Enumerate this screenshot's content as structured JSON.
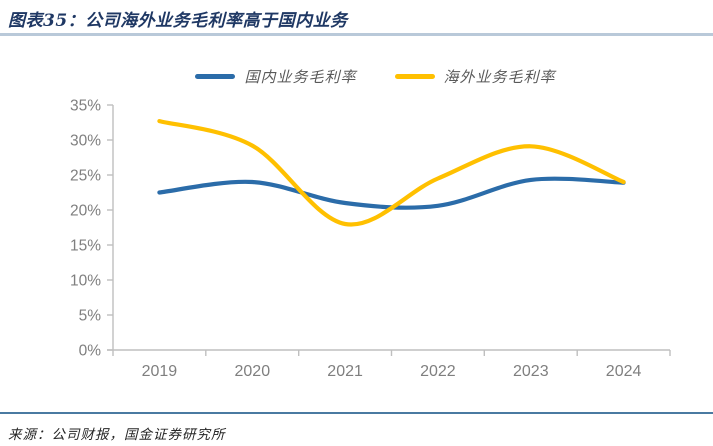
{
  "header": {
    "title": "图表35：公司海外业务毛利率高于国内业务"
  },
  "footer": {
    "source": "来源：公司财报，国金证券研究所"
  },
  "colors": {
    "title": "#1F3864",
    "divider_top": "#B9C9D9",
    "divider_bottom": "#4A7AA1",
    "axis": "#BFBFBF",
    "tick_label": "#7F7F7F",
    "legend_text": "#595959",
    "series_domestic": "#2B6CA9",
    "series_overseas": "#FFC000"
  },
  "chart_data": {
    "type": "line",
    "title": "图表35：公司海外业务毛利率高于国内业务",
    "categories": [
      "2019",
      "2020",
      "2021",
      "2022",
      "2023",
      "2024"
    ],
    "series": [
      {
        "name": "国内业务毛利率",
        "color": "#2B6CA9",
        "values": [
          22.5,
          24.0,
          21.0,
          20.6,
          24.3,
          23.9
        ]
      },
      {
        "name": "海外业务毛利率",
        "color": "#FFC000",
        "values": [
          32.7,
          29.2,
          18.0,
          24.5,
          29.1,
          24.0
        ]
      }
    ],
    "xlabel": "",
    "ylabel": "",
    "ylim": [
      0,
      35
    ],
    "ytick_step": 5,
    "ytick_suffix": "%",
    "grid": false,
    "smooth": true,
    "legend_position": "top-center",
    "source": "来源：公司财报，国金证券研究所"
  }
}
